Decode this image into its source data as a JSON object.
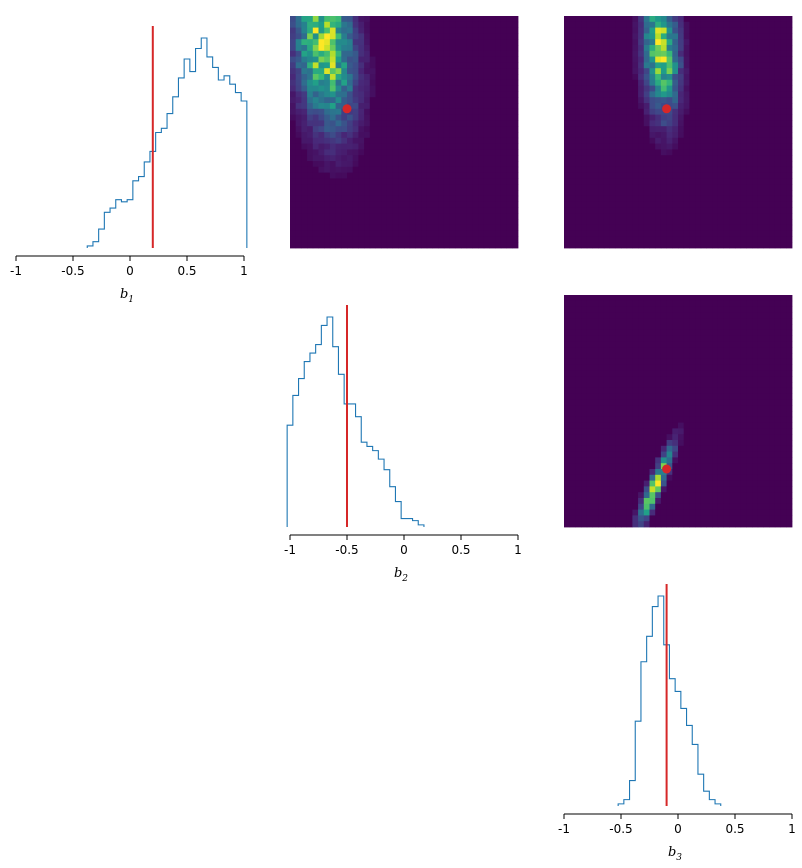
{
  "chart_data": {
    "type": "corner",
    "parameters": [
      "b1",
      "b2",
      "b3"
    ],
    "true_values": {
      "b1": 0.2,
      "b2": -0.5,
      "b3": -0.1
    },
    "marker_color": "#d62728",
    "hist_color": "#1f77b4",
    "colormap": "viridis",
    "xlim": [
      -1,
      1
    ],
    "xticks": [
      "-1",
      "-0.5",
      "0",
      "0.5",
      "1"
    ],
    "axis_labels": [
      {
        "base": "b",
        "sub": "1"
      },
      {
        "base": "b",
        "sub": "2"
      },
      {
        "base": "b",
        "sub": "3"
      }
    ],
    "marginals": [
      {
        "param": "b1",
        "x": [
          -0.35,
          -0.3,
          -0.25,
          -0.2,
          -0.15,
          -0.1,
          -0.05,
          0.0,
          0.05,
          0.1,
          0.15,
          0.2,
          0.25,
          0.3,
          0.35,
          0.4,
          0.45,
          0.5,
          0.55,
          0.6,
          0.65,
          0.7,
          0.75,
          0.8,
          0.85,
          0.9,
          0.95,
          1.0
        ],
        "values": [
          1,
          3,
          9,
          17,
          19,
          23,
          22,
          23,
          32,
          34,
          41,
          46,
          55,
          57,
          64,
          72,
          81,
          90,
          84,
          95,
          100,
          91,
          86,
          80,
          82,
          78,
          74,
          70
        ]
      },
      {
        "param": "b2",
        "x": [
          -1.0,
          -0.95,
          -0.9,
          -0.85,
          -0.8,
          -0.75,
          -0.7,
          -0.65,
          -0.6,
          -0.55,
          -0.5,
          -0.45,
          -0.4,
          -0.35,
          -0.3,
          -0.25,
          -0.2,
          -0.15,
          -0.1,
          -0.05,
          0.0,
          0.05,
          0.1,
          0.15
        ],
        "values": [
          48,
          62,
          70,
          78,
          82,
          86,
          95,
          99,
          85,
          72,
          58,
          58,
          52,
          40,
          38,
          36,
          32,
          27,
          19,
          12,
          4,
          4,
          3,
          1
        ]
      },
      {
        "param": "b3",
        "x": [
          -0.5,
          -0.45,
          -0.4,
          -0.35,
          -0.3,
          -0.25,
          -0.2,
          -0.15,
          -0.1,
          -0.05,
          0.0,
          0.05,
          0.1,
          0.15,
          0.2,
          0.25,
          0.3,
          0.35
        ],
        "values": [
          1,
          3,
          12,
          40,
          68,
          80,
          94,
          99,
          76,
          60,
          54,
          46,
          38,
          29,
          15,
          7,
          3,
          1
        ]
      }
    ],
    "joint": [
      {
        "row": "b1",
        "col": "b2",
        "peak": {
          "b2": -0.7,
          "b1": 0.75
        },
        "spread": [
          0.17,
          0.45
        ],
        "correlation": -0.25,
        "true_point": {
          "x": -0.5,
          "y": 0.2
        }
      },
      {
        "row": "b1",
        "col": "b3",
        "peak": {
          "b3": -0.15,
          "b1": 0.7
        },
        "spread": [
          0.1,
          0.35
        ],
        "correlation": -0.2,
        "true_point": {
          "x": -0.1,
          "y": 0.2
        }
      },
      {
        "row": "b2",
        "col": "b3",
        "peak": {
          "b3": -0.2,
          "b2": -0.65
        },
        "spread": [
          0.1,
          0.22
        ],
        "correlation": 0.92,
        "true_point": {
          "x": -0.1,
          "y": -0.5
        }
      }
    ],
    "grid": false,
    "legend": "none"
  }
}
